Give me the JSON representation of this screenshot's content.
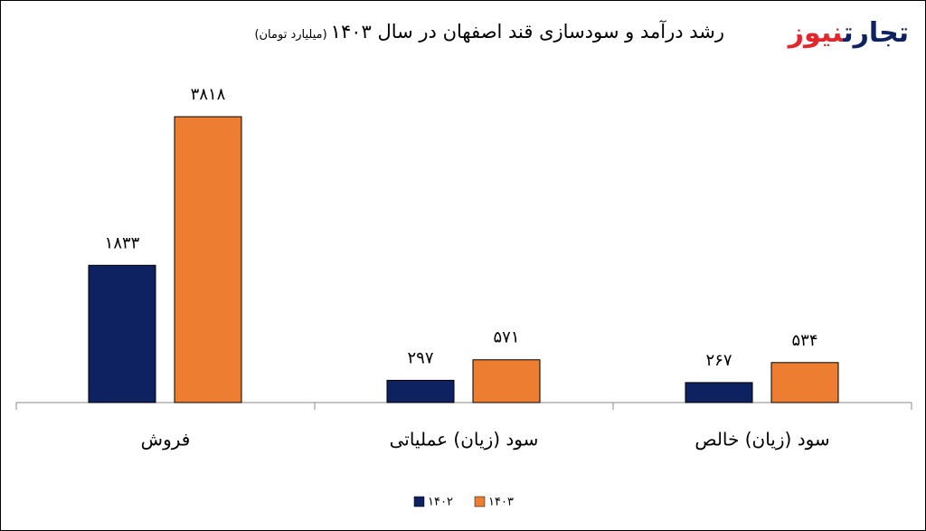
{
  "brand": [
    "تجارت",
    "نیوز"
  ],
  "chart_data": {
    "type": "bar",
    "title": "رشد درآمد و سودسازی قند اصفهان در سال ۱۴۰۳",
    "subtitle": "(میلیارد تومان)",
    "categories": [
      "فروش",
      "سود (زیان) عملیاتی",
      "سود (زیان) خالص"
    ],
    "series": [
      {
        "name": "۱۴۰۲",
        "color": "#0e2161",
        "values": [
          1833,
          297,
          267
        ],
        "value_labels": [
          "۱۸۳۳",
          "۲۹۷",
          "۲۶۷"
        ]
      },
      {
        "name": "۱۴۰۳",
        "color": "#ed7d31",
        "values": [
          3818,
          571,
          534
        ],
        "value_labels": [
          "۳۸۱۸",
          "۵۷۱",
          "۵۳۴"
        ]
      }
    ]
  }
}
